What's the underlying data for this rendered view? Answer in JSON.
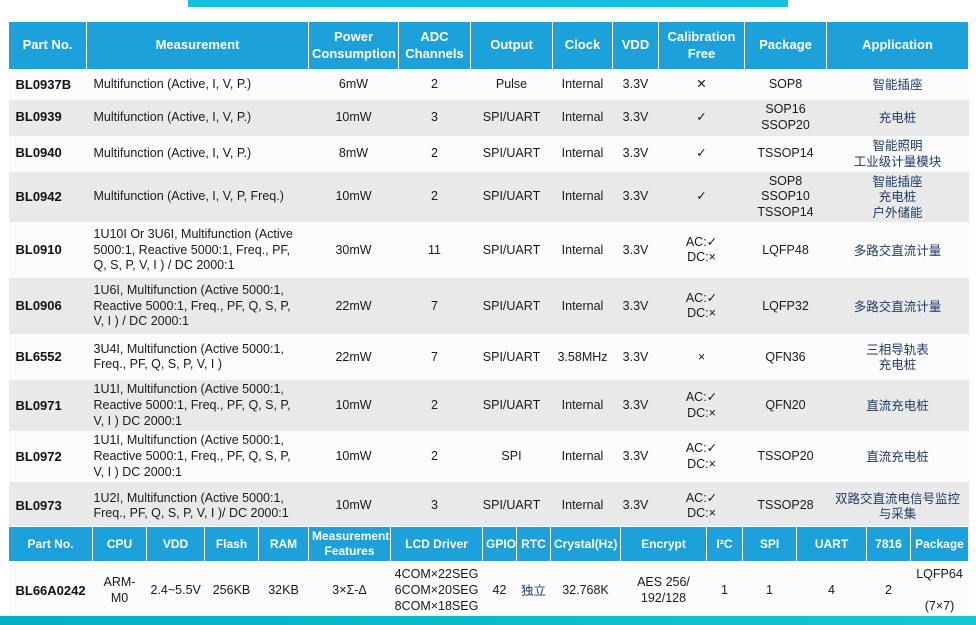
{
  "colors": {
    "header_bg": "#1da1da",
    "row_base": "#fbfbfb",
    "row_alt": "#e9e9e9",
    "accent_top": "#0fc4de",
    "accent_bottom": "#00afc2",
    "application_text": "#1f3b66"
  },
  "table1": {
    "headers": [
      "Part No.",
      "Measurement",
      "Power\nConsumption",
      "ADC\nChannels",
      "Output",
      "Clock",
      "VDD",
      "Calibration\nFree",
      "Package",
      "Application"
    ],
    "rows": [
      {
        "part": "BL0937B",
        "measurement": "Multifunction (Active, I, V, P.)",
        "power": "6mW",
        "adc": "2",
        "output": "Pulse",
        "clock": "Internal",
        "vdd": "3.3V",
        "calibration": "✕",
        "package": "SOP8",
        "application": "智能插座"
      },
      {
        "part": "BL0939",
        "measurement": "Multifunction (Active, I, V, P.)",
        "power": "10mW",
        "adc": "3",
        "output": "SPI/UART",
        "clock": "Internal",
        "vdd": "3.3V",
        "calibration": "✓",
        "package": "SOP16\nSSOP20",
        "application": "充电桩"
      },
      {
        "part": "BL0940",
        "measurement": "Multifunction (Active, I, V, P.)",
        "power": "8mW",
        "adc": "2",
        "output": "SPI/UART",
        "clock": "Internal",
        "vdd": "3.3V",
        "calibration": "✓",
        "package": "TSSOP14",
        "application": "智能照明\n工业级计量模块"
      },
      {
        "part": "BL0942",
        "measurement": "Multifunction (Active, I, V, P, Freq.)",
        "power": "10mW",
        "adc": "2",
        "output": "SPI/UART",
        "clock": "Internal",
        "vdd": "3.3V",
        "calibration": "✓",
        "package": "SOP8\nSSOP10\nTSSOP14",
        "application": "智能插座\n充电桩\n户外储能"
      },
      {
        "part": "BL0910",
        "measurement": "1U10I Or 3U6I, Multifunction (Active 5000:1, Reactive 5000:1, Freq., PF, Q, S, P, V, I ) / DC 2000:1",
        "power": "30mW",
        "adc": "11",
        "output": "SPI/UART",
        "clock": "Internal",
        "vdd": "3.3V",
        "calibration": "AC:✓\nDC:×",
        "package": "LQFP48",
        "application": "多路交直流计量"
      },
      {
        "part": "BL0906",
        "measurement": "1U6I, Multifunction (Active 5000:1, Reactive 5000:1, Freq., PF, Q, S, P, V, I ) / DC 2000:1",
        "power": "22mW",
        "adc": "7",
        "output": "SPI/UART",
        "clock": "Internal",
        "vdd": "3.3V",
        "calibration": "AC:✓\nDC:×",
        "package": "LQFP32",
        "application": "多路交直流计量"
      },
      {
        "part": "BL6552",
        "measurement": "3U4I, Multifunction (Active 5000:1, Freq., PF, Q, S, P, V, I )",
        "power": "22mW",
        "adc": "7",
        "output": "SPI/UART",
        "clock": "3.58MHz",
        "vdd": "3.3V",
        "calibration": "×",
        "package": "QFN36",
        "application": "三相导轨表\n充电桩"
      },
      {
        "part": "BL0971",
        "measurement": "1U1I, Multifunction (Active 5000:1, Reactive 5000:1, Freq., PF, Q, S, P, V, I ) DC 2000:1",
        "power": "10mW",
        "adc": "2",
        "output": "SPI/UART",
        "clock": "Internal",
        "vdd": "3.3V",
        "calibration": "AC:✓\nDC:×",
        "package": "QFN20",
        "application": "直流充电桩"
      },
      {
        "part": "BL0972",
        "measurement": "1U1I, Multifunction (Active 5000:1, Reactive 5000:1, Freq., PF, Q, S, P, V, I ) DC 2000:1",
        "power": "10mW",
        "adc": "2",
        "output": "SPI",
        "clock": "Internal",
        "vdd": "3.3V",
        "calibration": "AC:✓\nDC:×",
        "package": "TSSOP20",
        "application": "直流充电桩"
      },
      {
        "part": "BL0973",
        "measurement": "1U2I, Multifunction (Active 5000:1, Freq., PF, Q, S, P, V, I )/ DC 2000:1",
        "power": "10mW",
        "adc": "3",
        "output": "SPI/UART",
        "clock": "Internal",
        "vdd": "3.3V",
        "calibration": "AC:✓\nDC:×",
        "package": "TSSOP28",
        "application": "双路交直流电信号监控与采集"
      }
    ]
  },
  "table2": {
    "headers": [
      "Part No.",
      "CPU",
      "VDD",
      "Flash",
      "RAM",
      "Measurement\nFeatures",
      "LCD Driver",
      "GPIO",
      "RTC",
      "Crystal(Hz)",
      "Encrypt",
      "I²C",
      "SPI",
      "UART",
      "7816",
      "Package"
    ],
    "rows": [
      {
        "part": "BL66A0242",
        "cpu": "ARM-M0",
        "vdd": "2.4~5.5V",
        "flash": "256KB",
        "ram": "32KB",
        "features": "3×Σ-Δ",
        "lcd": "4COM×22SEG\n6COM×20SEG\n8COM×18SEG",
        "gpio": "42",
        "rtc": "独立",
        "crystal": "32.768K",
        "encrypt": "AES 256/\n192/128",
        "i2c": "1",
        "spi": "1",
        "uart": "4",
        "p7816": "2",
        "package": "LQFP64\n\n(7×7)"
      }
    ]
  }
}
